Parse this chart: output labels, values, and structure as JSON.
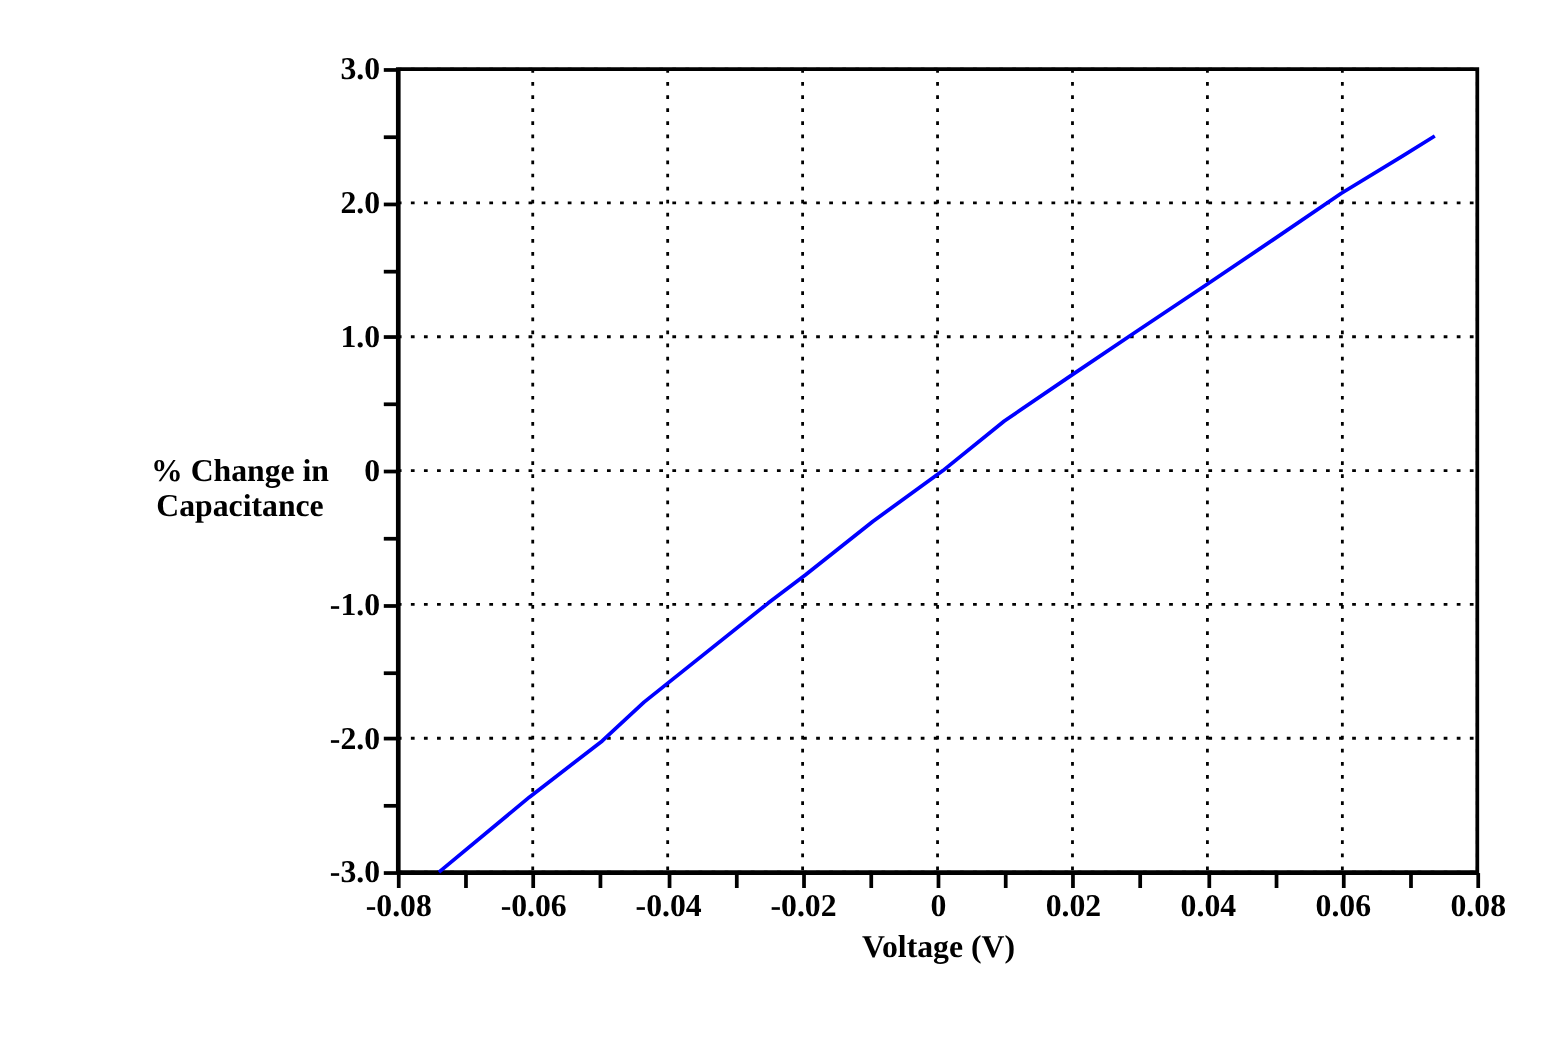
{
  "chart_data": {
    "type": "line",
    "xlabel": "Voltage (V)",
    "ylabel": "% Change in\nCapacitance",
    "x": [
      -0.0739,
      -0.0605,
      -0.0497,
      -0.0435,
      -0.0251,
      -0.0196,
      -0.0096,
      0.0008,
      0.0099,
      0.0195,
      0.0292,
      0.0399,
      0.0496,
      0.0598,
      0.0689,
      0.0737
    ],
    "series": [
      {
        "color": "#0000ff",
        "values": [
          -3.0,
          -2.44,
          -2.02,
          -1.73,
          -0.99,
          -0.78,
          -0.38,
          0.0,
          0.37,
          0.7,
          1.03,
          1.39,
          1.72,
          2.07,
          2.35,
          2.5
        ]
      }
    ],
    "xlim": [
      -0.08,
      0.08
    ],
    "xticks": [
      -0.08,
      {
        "value": -0.07,
        "label": null
      },
      -0.06,
      {
        "value": -0.05,
        "label": null
      },
      -0.04,
      {
        "value": -0.03,
        "label": null
      },
      -0.02,
      {
        "value": -0.01,
        "label": null
      },
      0,
      {
        "value": 0.01,
        "label": null
      },
      0.02,
      {
        "value": 0.03,
        "label": null
      },
      0.04,
      {
        "value": 0.05,
        "label": null
      },
      0.06,
      {
        "value": 0.07,
        "label": null
      },
      0.08
    ],
    "ylim": [
      -3.0,
      3.0
    ],
    "yticks": [
      {
        "value": -3,
        "label": "-3.0"
      },
      {
        "value": -2.5,
        "label": null
      },
      {
        "value": -2,
        "label": "-2.0"
      },
      {
        "value": -1.5,
        "label": null
      },
      {
        "value": -1,
        "label": "-1.0"
      },
      {
        "value": -0.5,
        "label": null
      },
      0,
      {
        "value": 0.5,
        "label": null
      },
      {
        "value": 1,
        "label": "1.0"
      },
      {
        "value": 1.5,
        "label": null
      },
      {
        "value": 2,
        "label": "2.0"
      },
      {
        "value": 2.5,
        "label": null
      },
      {
        "value": 3,
        "label": "3.0"
      }
    ],
    "grid": true,
    "marker": "none",
    "line_style": "solid"
  }
}
